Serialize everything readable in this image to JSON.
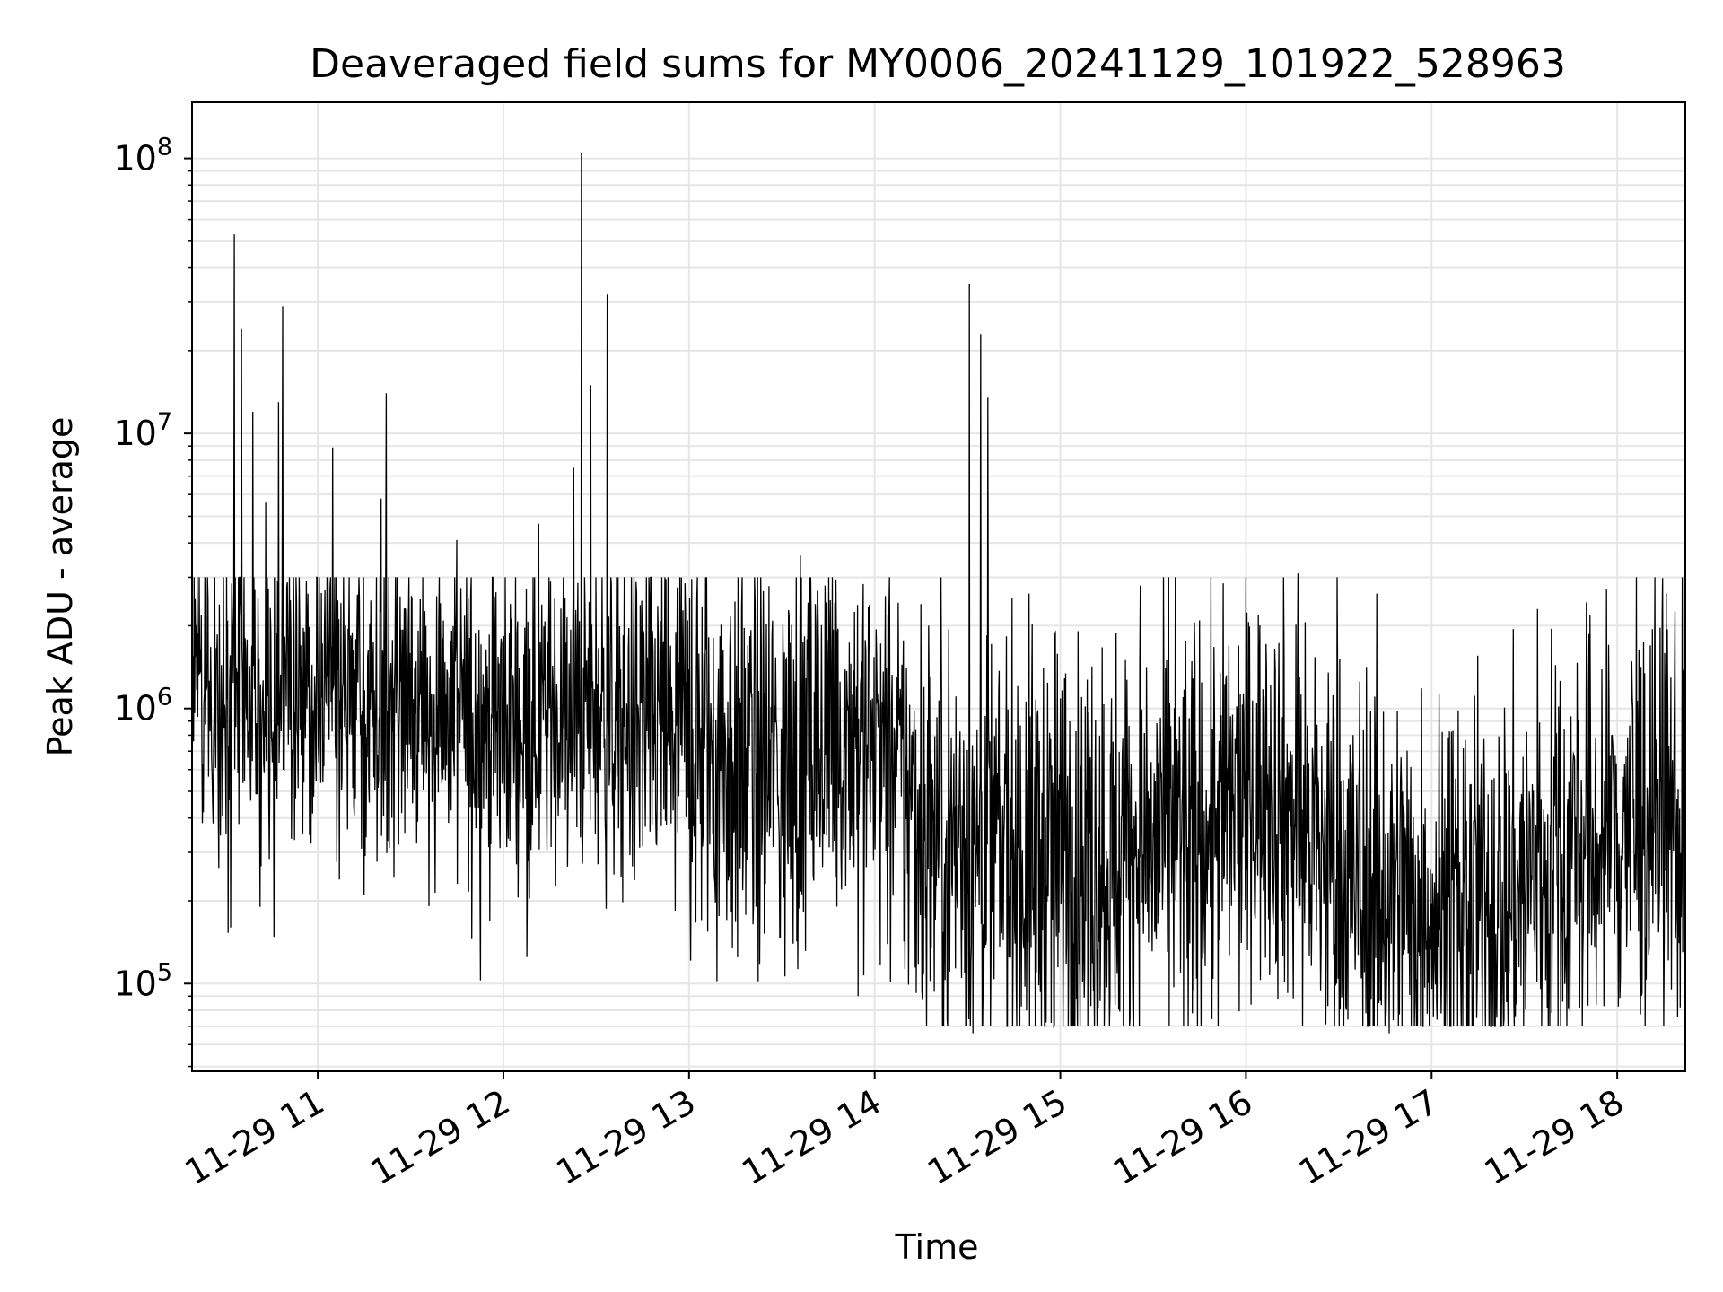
{
  "chart_data": {
    "type": "line",
    "title": "Deaveraged field sums for MY0006_20241129_101922_528963",
    "xlabel": "Time",
    "ylabel": "Peak ADU - average",
    "yscale": "log",
    "grid": true,
    "xlim": [
      "11-29 10:19:22",
      "11-29 18:22:00"
    ],
    "ylim": [
      48000,
      160000000
    ],
    "x_ticks": [
      "11-29 11",
      "11-29 12",
      "11-29 13",
      "11-29 14",
      "11-29 15",
      "11-29 16",
      "11-29 17",
      "11-29 18"
    ],
    "x_tick_hours": [
      11,
      12,
      13,
      14,
      15,
      16,
      17,
      18
    ],
    "y_ticks": [
      {
        "value": 100000,
        "base": "10",
        "exp": "5"
      },
      {
        "value": 1000000,
        "base": "10",
        "exp": "6"
      },
      {
        "value": 10000000,
        "base": "10",
        "exp": "7"
      },
      {
        "value": 100000000,
        "base": "10",
        "exp": "8"
      }
    ],
    "line_color": "#000000",
    "grid_color": "#e6e6e6",
    "series_envelope": [
      {
        "hour": 10.33,
        "median": 1500000,
        "spread": 0.28
      },
      {
        "hour": 10.6,
        "median": 1050000,
        "spread": 0.3
      },
      {
        "hour": 11.0,
        "median": 1100000,
        "spread": 0.28
      },
      {
        "hour": 11.5,
        "median": 1000000,
        "spread": 0.3
      },
      {
        "hour": 12.0,
        "median": 900000,
        "spread": 0.3
      },
      {
        "hour": 12.5,
        "median": 1000000,
        "spread": 0.3
      },
      {
        "hour": 13.0,
        "median": 750000,
        "spread": 0.4
      },
      {
        "hour": 13.5,
        "median": 600000,
        "spread": 0.4
      },
      {
        "hour": 13.9,
        "median": 900000,
        "spread": 0.35
      },
      {
        "hour": 14.3,
        "median": 350000,
        "spread": 0.4
      },
      {
        "hour": 14.8,
        "median": 280000,
        "spread": 0.42
      },
      {
        "hour": 15.3,
        "median": 300000,
        "spread": 0.4
      },
      {
        "hour": 15.8,
        "median": 350000,
        "spread": 0.4
      },
      {
        "hour": 16.1,
        "median": 550000,
        "spread": 0.35
      },
      {
        "hour": 16.5,
        "median": 250000,
        "spread": 0.4
      },
      {
        "hour": 16.9,
        "median": 200000,
        "spread": 0.38
      },
      {
        "hour": 17.3,
        "median": 180000,
        "spread": 0.38
      },
      {
        "hour": 17.7,
        "median": 280000,
        "spread": 0.4
      },
      {
        "hour": 18.1,
        "median": 380000,
        "spread": 0.4
      },
      {
        "hour": 18.37,
        "median": 420000,
        "spread": 0.42
      }
    ],
    "spikes": [
      {
        "hour": 10.55,
        "value": 53000000
      },
      {
        "hour": 10.59,
        "value": 24000000
      },
      {
        "hour": 10.65,
        "value": 12000000
      },
      {
        "hour": 10.72,
        "value": 5600000
      },
      {
        "hour": 10.79,
        "value": 13000000
      },
      {
        "hour": 10.81,
        "value": 29000000
      },
      {
        "hour": 11.08,
        "value": 8900000
      },
      {
        "hour": 11.34,
        "value": 5800000
      },
      {
        "hour": 11.37,
        "value": 14000000
      },
      {
        "hour": 11.75,
        "value": 4100000
      },
      {
        "hour": 12.19,
        "value": 4700000
      },
      {
        "hour": 12.38,
        "value": 7500000
      },
      {
        "hour": 12.42,
        "value": 105000000
      },
      {
        "hour": 12.47,
        "value": 15000000
      },
      {
        "hour": 12.56,
        "value": 32000000
      },
      {
        "hour": 13.6,
        "value": 3600000
      },
      {
        "hour": 14.25,
        "value": 2400000
      },
      {
        "hour": 14.51,
        "value": 35000000
      },
      {
        "hour": 14.57,
        "value": 23000000
      },
      {
        "hour": 14.61,
        "value": 13500000
      },
      {
        "hour": 15.43,
        "value": 2800000
      },
      {
        "hour": 16.28,
        "value": 3100000
      },
      {
        "hour": 17.57,
        "value": 2300000
      }
    ],
    "dips": [
      {
        "hour": 10.53,
        "value": 160000
      },
      {
        "hour": 10.69,
        "value": 190000
      },
      {
        "hour": 11.83,
        "value": 145000
      },
      {
        "hour": 13.15,
        "value": 102000
      },
      {
        "hour": 13.91,
        "value": 90000
      },
      {
        "hour": 14.53,
        "value": 66000
      },
      {
        "hour": 14.95,
        "value": 72000
      },
      {
        "hour": 15.71,
        "value": 78000
      },
      {
        "hour": 16.55,
        "value": 74000
      },
      {
        "hour": 16.77,
        "value": 66000
      },
      {
        "hour": 17.22,
        "value": 80000
      },
      {
        "hour": 18.34,
        "value": 82000
      }
    ]
  }
}
